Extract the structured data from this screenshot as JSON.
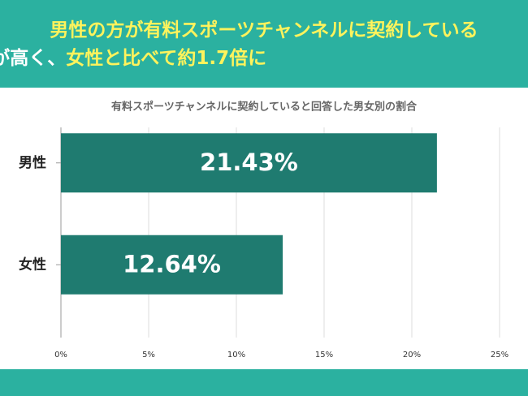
{
  "chart_data": {
    "type": "barh",
    "headline": [
      "男性の方が有料スポーツチャンネルに契約している",
      "と回答した割合が高く、",
      "女性と比べて約1.7倍に"
    ],
    "title": "有料スポーツチャンネルに契約していると回答した男女別の割合",
    "categories": [
      "男性",
      "女性"
    ],
    "values": [
      21.43,
      12.64
    ],
    "value_labels": [
      "21.43%",
      "12.64%"
    ],
    "color": "#1f7b70",
    "xlim": [
      0,
      25
    ],
    "xticks": [
      {
        "value": 0,
        "label": "0%"
      },
      {
        "value": 5,
        "label": "5%"
      },
      {
        "value": 10,
        "label": "10%"
      },
      {
        "value": 15,
        "label": "15%"
      },
      {
        "value": 20,
        "label": "20%"
      },
      {
        "value": 25,
        "label": "25%"
      }
    ],
    "grid": true
  }
}
